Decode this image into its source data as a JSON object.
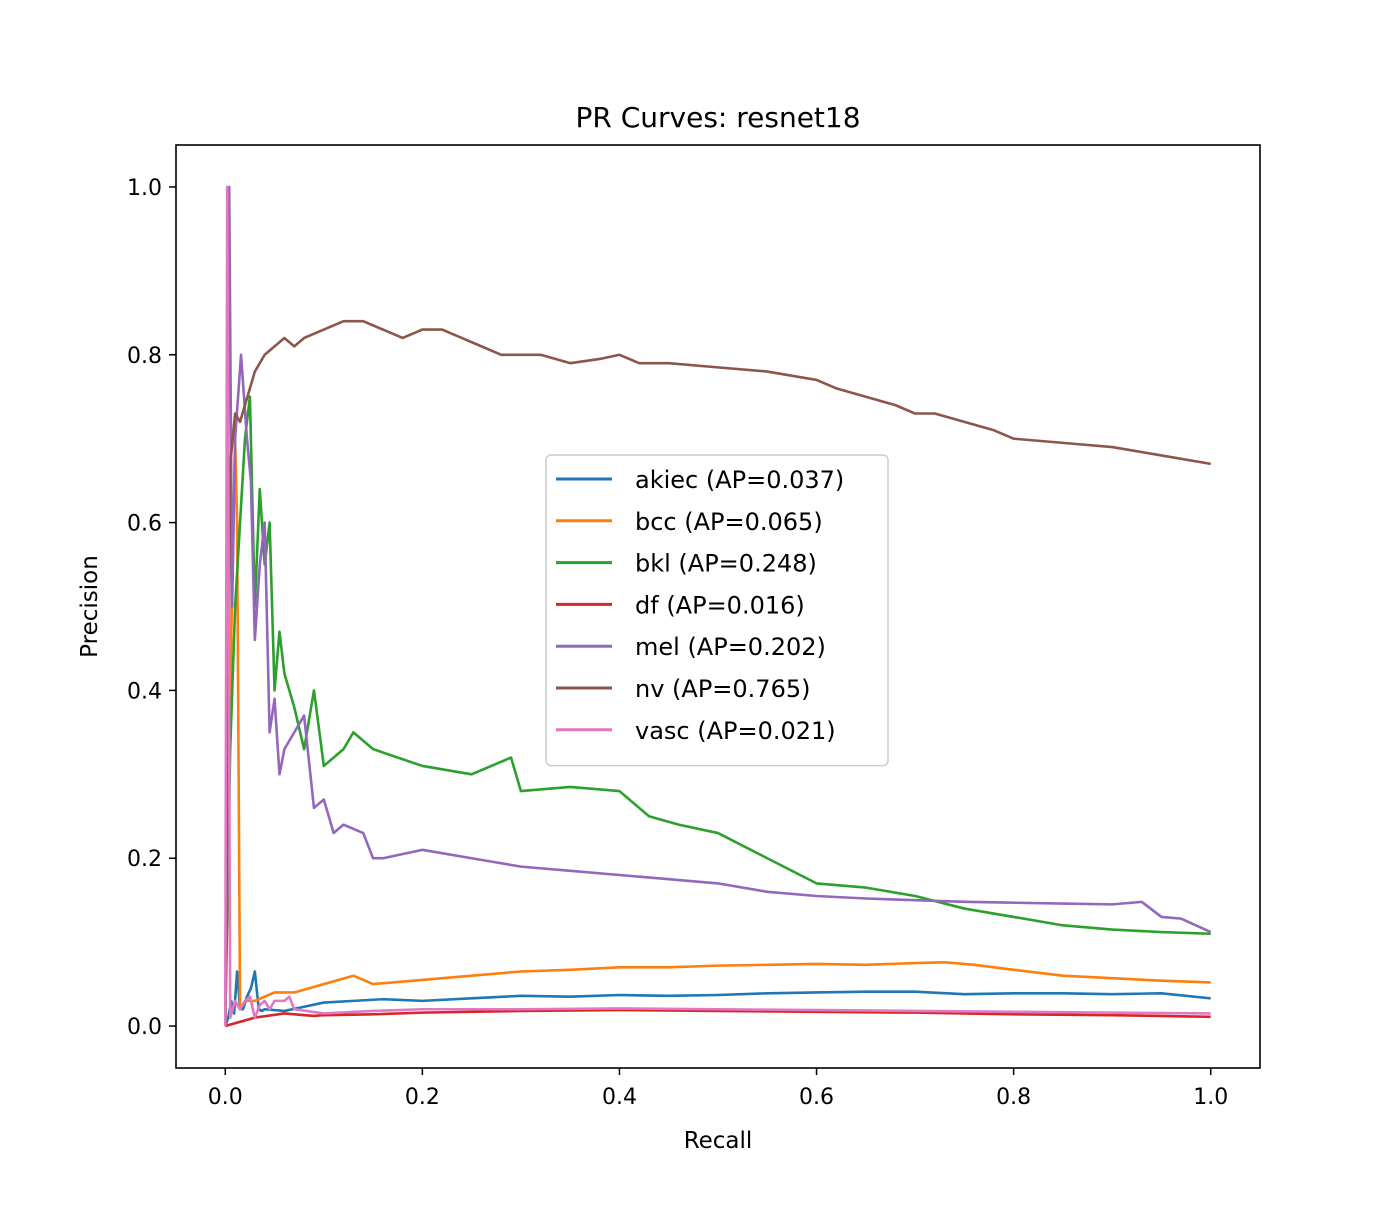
{
  "chart_data": {
    "type": "line",
    "title": "PR Curves: resnet18",
    "xlabel": "Recall",
    "ylabel": "Precision",
    "xlim": [
      -0.05,
      1.05
    ],
    "ylim": [
      -0.05,
      1.05
    ],
    "xticks": [
      0.0,
      0.2,
      0.4,
      0.6,
      0.8,
      1.0
    ],
    "yticks": [
      0.0,
      0.2,
      0.4,
      0.6,
      0.8,
      1.0
    ],
    "xtick_labels": [
      "0.0",
      "0.2",
      "0.4",
      "0.6",
      "0.8",
      "1.0"
    ],
    "ytick_labels": [
      "0.0",
      "0.2",
      "0.4",
      "0.6",
      "0.8",
      "1.0"
    ],
    "grid": false,
    "legend_position": "center",
    "series": [
      {
        "name": "akiec (AP=0.037)",
        "color": "#1f77b4",
        "x": [
          0.0,
          0.003,
          0.006,
          0.009,
          0.012,
          0.015,
          0.018,
          0.022,
          0.026,
          0.03,
          0.034,
          0.037,
          0.04,
          0.06,
          0.08,
          0.1,
          0.13,
          0.16,
          0.2,
          0.25,
          0.3,
          0.35,
          0.4,
          0.45,
          0.5,
          0.55,
          0.6,
          0.65,
          0.7,
          0.75,
          0.8,
          0.85,
          0.9,
          0.95,
          1.0
        ],
        "y": [
          0.0,
          0.01,
          0.03,
          0.015,
          0.065,
          0.02,
          0.02,
          0.035,
          0.045,
          0.065,
          0.02,
          0.018,
          0.02,
          0.018,
          0.023,
          0.028,
          0.03,
          0.032,
          0.03,
          0.033,
          0.036,
          0.035,
          0.037,
          0.036,
          0.037,
          0.039,
          0.04,
          0.041,
          0.041,
          0.038,
          0.039,
          0.039,
          0.038,
          0.039,
          0.033
        ]
      },
      {
        "name": "bcc (AP=0.065)",
        "color": "#ff7f0e",
        "x": [
          0.0,
          0.005,
          0.01,
          0.012,
          0.015,
          0.02,
          0.03,
          0.05,
          0.07,
          0.1,
          0.13,
          0.15,
          0.2,
          0.25,
          0.3,
          0.35,
          0.4,
          0.45,
          0.5,
          0.55,
          0.6,
          0.65,
          0.7,
          0.73,
          0.76,
          0.8,
          0.85,
          0.9,
          0.95,
          1.0
        ],
        "y": [
          0.0,
          0.4,
          0.7,
          0.6,
          0.02,
          0.03,
          0.03,
          0.04,
          0.04,
          0.05,
          0.06,
          0.05,
          0.055,
          0.06,
          0.065,
          0.067,
          0.07,
          0.07,
          0.072,
          0.073,
          0.074,
          0.073,
          0.075,
          0.076,
          0.073,
          0.067,
          0.06,
          0.057,
          0.054,
          0.052
        ]
      },
      {
        "name": "bkl (AP=0.248)",
        "color": "#2ca02c",
        "x": [
          0.0,
          0.005,
          0.01,
          0.015,
          0.02,
          0.025,
          0.03,
          0.035,
          0.04,
          0.045,
          0.05,
          0.055,
          0.06,
          0.065,
          0.07,
          0.08,
          0.09,
          0.1,
          0.12,
          0.13,
          0.15,
          0.2,
          0.25,
          0.29,
          0.3,
          0.35,
          0.4,
          0.43,
          0.46,
          0.5,
          0.55,
          0.6,
          0.65,
          0.7,
          0.75,
          0.8,
          0.85,
          0.9,
          0.95,
          1.0
        ],
        "y": [
          0.0,
          0.33,
          0.5,
          0.6,
          0.7,
          0.75,
          0.5,
          0.64,
          0.55,
          0.6,
          0.4,
          0.47,
          0.42,
          0.4,
          0.38,
          0.33,
          0.4,
          0.31,
          0.33,
          0.35,
          0.33,
          0.31,
          0.3,
          0.32,
          0.28,
          0.285,
          0.28,
          0.25,
          0.24,
          0.23,
          0.2,
          0.17,
          0.165,
          0.155,
          0.14,
          0.13,
          0.12,
          0.115,
          0.112,
          0.11
        ]
      },
      {
        "name": "df (AP=0.016)",
        "color": "#d62728",
        "x": [
          0.0,
          0.03,
          0.06,
          0.09,
          0.1,
          0.15,
          0.2,
          0.3,
          0.4,
          0.5,
          0.6,
          0.7,
          0.8,
          0.9,
          1.0
        ],
        "y": [
          0.0,
          0.01,
          0.015,
          0.012,
          0.013,
          0.014,
          0.016,
          0.018,
          0.019,
          0.018,
          0.017,
          0.016,
          0.014,
          0.013,
          0.011
        ]
      },
      {
        "name": "mel (AP=0.202)",
        "color": "#9467bd",
        "x": [
          0.0,
          0.004,
          0.007,
          0.01,
          0.013,
          0.016,
          0.019,
          0.022,
          0.026,
          0.03,
          0.035,
          0.04,
          0.045,
          0.05,
          0.055,
          0.06,
          0.07,
          0.08,
          0.09,
          0.1,
          0.11,
          0.12,
          0.14,
          0.15,
          0.16,
          0.2,
          0.25,
          0.3,
          0.35,
          0.4,
          0.45,
          0.5,
          0.55,
          0.6,
          0.65,
          0.7,
          0.75,
          0.8,
          0.85,
          0.9,
          0.93,
          0.95,
          0.97,
          1.0
        ],
        "y": [
          0.0,
          1.0,
          0.5,
          0.7,
          0.75,
          0.8,
          0.75,
          0.7,
          0.65,
          0.46,
          0.55,
          0.6,
          0.35,
          0.39,
          0.3,
          0.33,
          0.35,
          0.37,
          0.26,
          0.27,
          0.23,
          0.24,
          0.23,
          0.2,
          0.2,
          0.21,
          0.2,
          0.19,
          0.185,
          0.18,
          0.175,
          0.17,
          0.16,
          0.155,
          0.152,
          0.15,
          0.148,
          0.147,
          0.146,
          0.145,
          0.148,
          0.13,
          0.128,
          0.112
        ]
      },
      {
        "name": "nv (AP=0.765)",
        "color": "#8c564b",
        "x": [
          0.0,
          0.005,
          0.01,
          0.015,
          0.02,
          0.025,
          0.03,
          0.04,
          0.05,
          0.06,
          0.07,
          0.08,
          0.1,
          0.12,
          0.14,
          0.16,
          0.18,
          0.2,
          0.22,
          0.24,
          0.26,
          0.28,
          0.3,
          0.32,
          0.35,
          0.38,
          0.4,
          0.42,
          0.45,
          0.5,
          0.55,
          0.6,
          0.62,
          0.65,
          0.68,
          0.7,
          0.72,
          0.75,
          0.78,
          0.8,
          0.85,
          0.9,
          0.95,
          1.0
        ],
        "y": [
          0.0,
          0.67,
          0.73,
          0.72,
          0.74,
          0.76,
          0.78,
          0.8,
          0.81,
          0.82,
          0.81,
          0.82,
          0.83,
          0.84,
          0.84,
          0.83,
          0.82,
          0.83,
          0.83,
          0.82,
          0.81,
          0.8,
          0.8,
          0.8,
          0.79,
          0.795,
          0.8,
          0.79,
          0.79,
          0.785,
          0.78,
          0.77,
          0.76,
          0.75,
          0.74,
          0.73,
          0.73,
          0.72,
          0.71,
          0.7,
          0.695,
          0.69,
          0.68,
          0.67
        ]
      },
      {
        "name": "vasc (AP=0.021)",
        "color": "#e377c2",
        "x": [
          0.0,
          0.002,
          0.005,
          0.01,
          0.015,
          0.02,
          0.025,
          0.03,
          0.035,
          0.04,
          0.045,
          0.05,
          0.06,
          0.065,
          0.07,
          0.1,
          0.15,
          0.2,
          0.3,
          0.4,
          0.5,
          0.6,
          0.7,
          0.8,
          0.9,
          1.0
        ],
        "y": [
          0.0,
          1.0,
          0.01,
          0.03,
          0.02,
          0.03,
          0.035,
          0.01,
          0.025,
          0.03,
          0.02,
          0.03,
          0.03,
          0.035,
          0.02,
          0.015,
          0.018,
          0.02,
          0.02,
          0.021,
          0.02,
          0.019,
          0.018,
          0.017,
          0.016,
          0.015
        ]
      }
    ]
  }
}
